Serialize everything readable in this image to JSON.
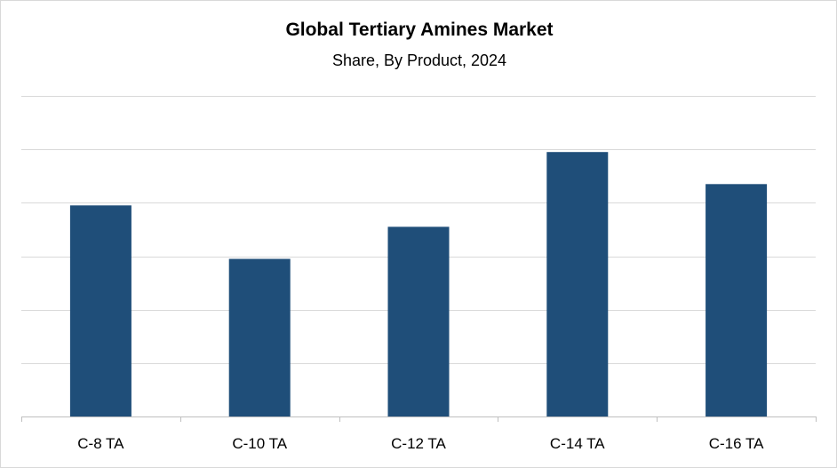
{
  "chart_data": {
    "type": "bar",
    "title": "Global Tertiary Amines Market",
    "subtitle": "Share, By Product, 2024",
    "categories": [
      "C-8 TA",
      "C-10 TA",
      "C-12 TA",
      "C-14 TA",
      "C-16 TA"
    ],
    "series": [
      {
        "values": [
          3.95,
          2.95,
          3.55,
          4.95,
          4.35
        ]
      }
    ],
    "ylim": [
      0,
      6
    ],
    "y_ticks_shown": false,
    "grid": true,
    "legend": "none",
    "colors": {
      "bar": "#1f4e79",
      "grid": "#d9d9d9",
      "axis": "#bfbfbf"
    }
  }
}
